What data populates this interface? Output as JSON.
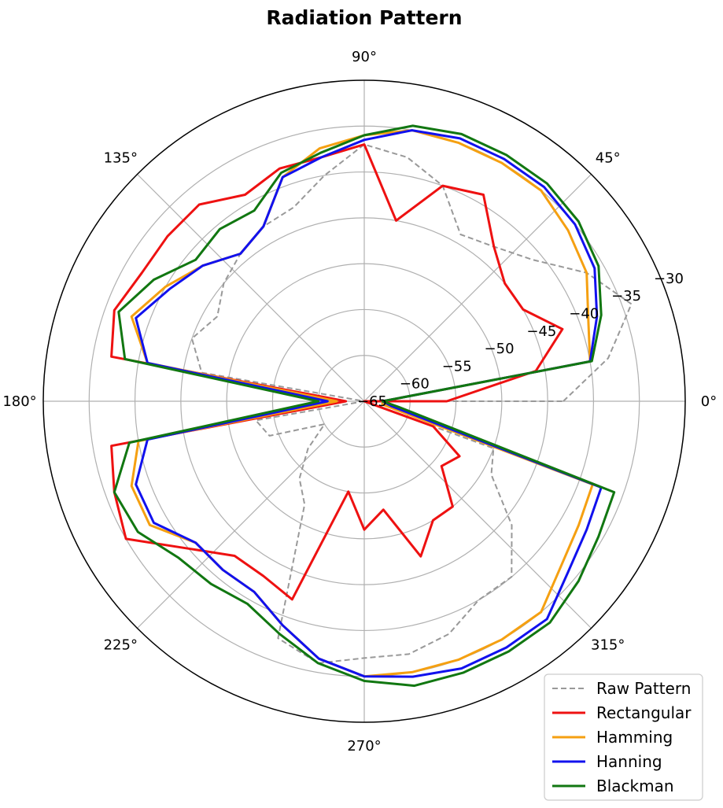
{
  "chart_data": {
    "type": "line",
    "projection": "polar",
    "title": "Radiation Pattern",
    "theta_unit": "degrees",
    "radial_range": [
      -65,
      -30
    ],
    "radial_ticks": [
      -65,
      -60,
      -55,
      -50,
      -45,
      -40,
      -35,
      -30
    ],
    "radial_tick_labels": [
      "−65",
      "−60",
      "−55",
      "−50",
      "−45",
      "−40",
      "−35",
      "−30"
    ],
    "angle_ticks": [
      0,
      45,
      90,
      135,
      180,
      225,
      270,
      315
    ],
    "angle_tick_labels": [
      "0°",
      "45°",
      "90°",
      "135°",
      "180°",
      "225°",
      "270°",
      "315°"
    ],
    "grid": true,
    "legend_position": "bottom-right",
    "theta": [
      0,
      10,
      20,
      30,
      40,
      50,
      60,
      70,
      80,
      90,
      100,
      110,
      120,
      130,
      140,
      150,
      160,
      170,
      180,
      190,
      200,
      210,
      220,
      230,
      240,
      250,
      260,
      270,
      280,
      290,
      300,
      310,
      320,
      330,
      340,
      350
    ],
    "series": [
      {
        "name": "Raw Pattern",
        "color": "#999999",
        "dash": true,
        "width": 2,
        "values": [
          -43.3,
          -38,
          -34,
          -37,
          -41,
          -43,
          -44,
          -40,
          -38,
          -37,
          -40,
          -42.5,
          -43,
          -44,
          -45,
          -46.5,
          -45,
          -47,
          -65,
          -53,
          -54,
          -60,
          -57,
          -54,
          -52,
          -37.5,
          -36,
          -37,
          -37,
          -38,
          -40,
          -40,
          -44,
          -49,
          -50,
          -65
        ]
      },
      {
        "name": "Rectangular",
        "color": "#ee1111",
        "width": 3,
        "values": [
          -56,
          -46,
          -42,
          -45,
          -45,
          -43,
          -39,
          -40,
          -45,
          -37,
          -38,
          -38,
          -39,
          -37,
          -37,
          -37,
          -36,
          -37,
          -63,
          -37,
          -36,
          -35,
          -40,
          -43,
          -43,
          -42,
          -55,
          -51,
          -53,
          -47,
          -50,
          -50,
          -54,
          -53,
          -57,
          -65
        ]
      },
      {
        "name": "Hamming",
        "color": "#f5a011",
        "width": 3,
        "values": [
          -63,
          -40,
          -39,
          -37,
          -36,
          -35,
          -35,
          -35,
          -35,
          -36,
          -37,
          -39,
          -43,
          -44,
          -42,
          -40,
          -38,
          -41,
          -62,
          -40,
          -38,
          -38,
          -41,
          -41,
          -41,
          -39,
          -36.5,
          -35,
          -35,
          -35,
          -35,
          -35,
          -37,
          -38,
          -38.5,
          -63
        ]
      },
      {
        "name": "Hanning",
        "color": "#1111ee",
        "width": 3,
        "values": [
          -63,
          -40,
          -38,
          -36,
          -35,
          -34.5,
          -34.5,
          -34.5,
          -35,
          -36.5,
          -38,
          -39,
          -43,
          -44,
          -42,
          -40.5,
          -38.5,
          -41,
          -61,
          -41,
          -38.5,
          -38.5,
          -41,
          -41,
          -41,
          -39,
          -36.5,
          -35,
          -34.5,
          -34,
          -34,
          -34,
          -36,
          -37,
          -37.5,
          -62
        ]
      },
      {
        "name": "Blackman",
        "color": "#117711",
        "width": 3,
        "values": [
          -63,
          -39.8,
          -37.5,
          -35.5,
          -34.5,
          -34,
          -34,
          -34,
          -34.5,
          -36,
          -37.5,
          -38.5,
          -41,
          -40.5,
          -41,
          -38.5,
          -36.5,
          -38.5,
          -60,
          -39,
          -36,
          -36.5,
          -38.5,
          -39,
          -39.5,
          -38,
          -36,
          -34.5,
          -33.5,
          -33.5,
          -33.5,
          -33.5,
          -34.5,
          -35.5,
          -36,
          -61
        ]
      }
    ]
  },
  "colors": {
    "grid": "#b0b0b0",
    "axis": "#000000",
    "text": "#000000"
  }
}
